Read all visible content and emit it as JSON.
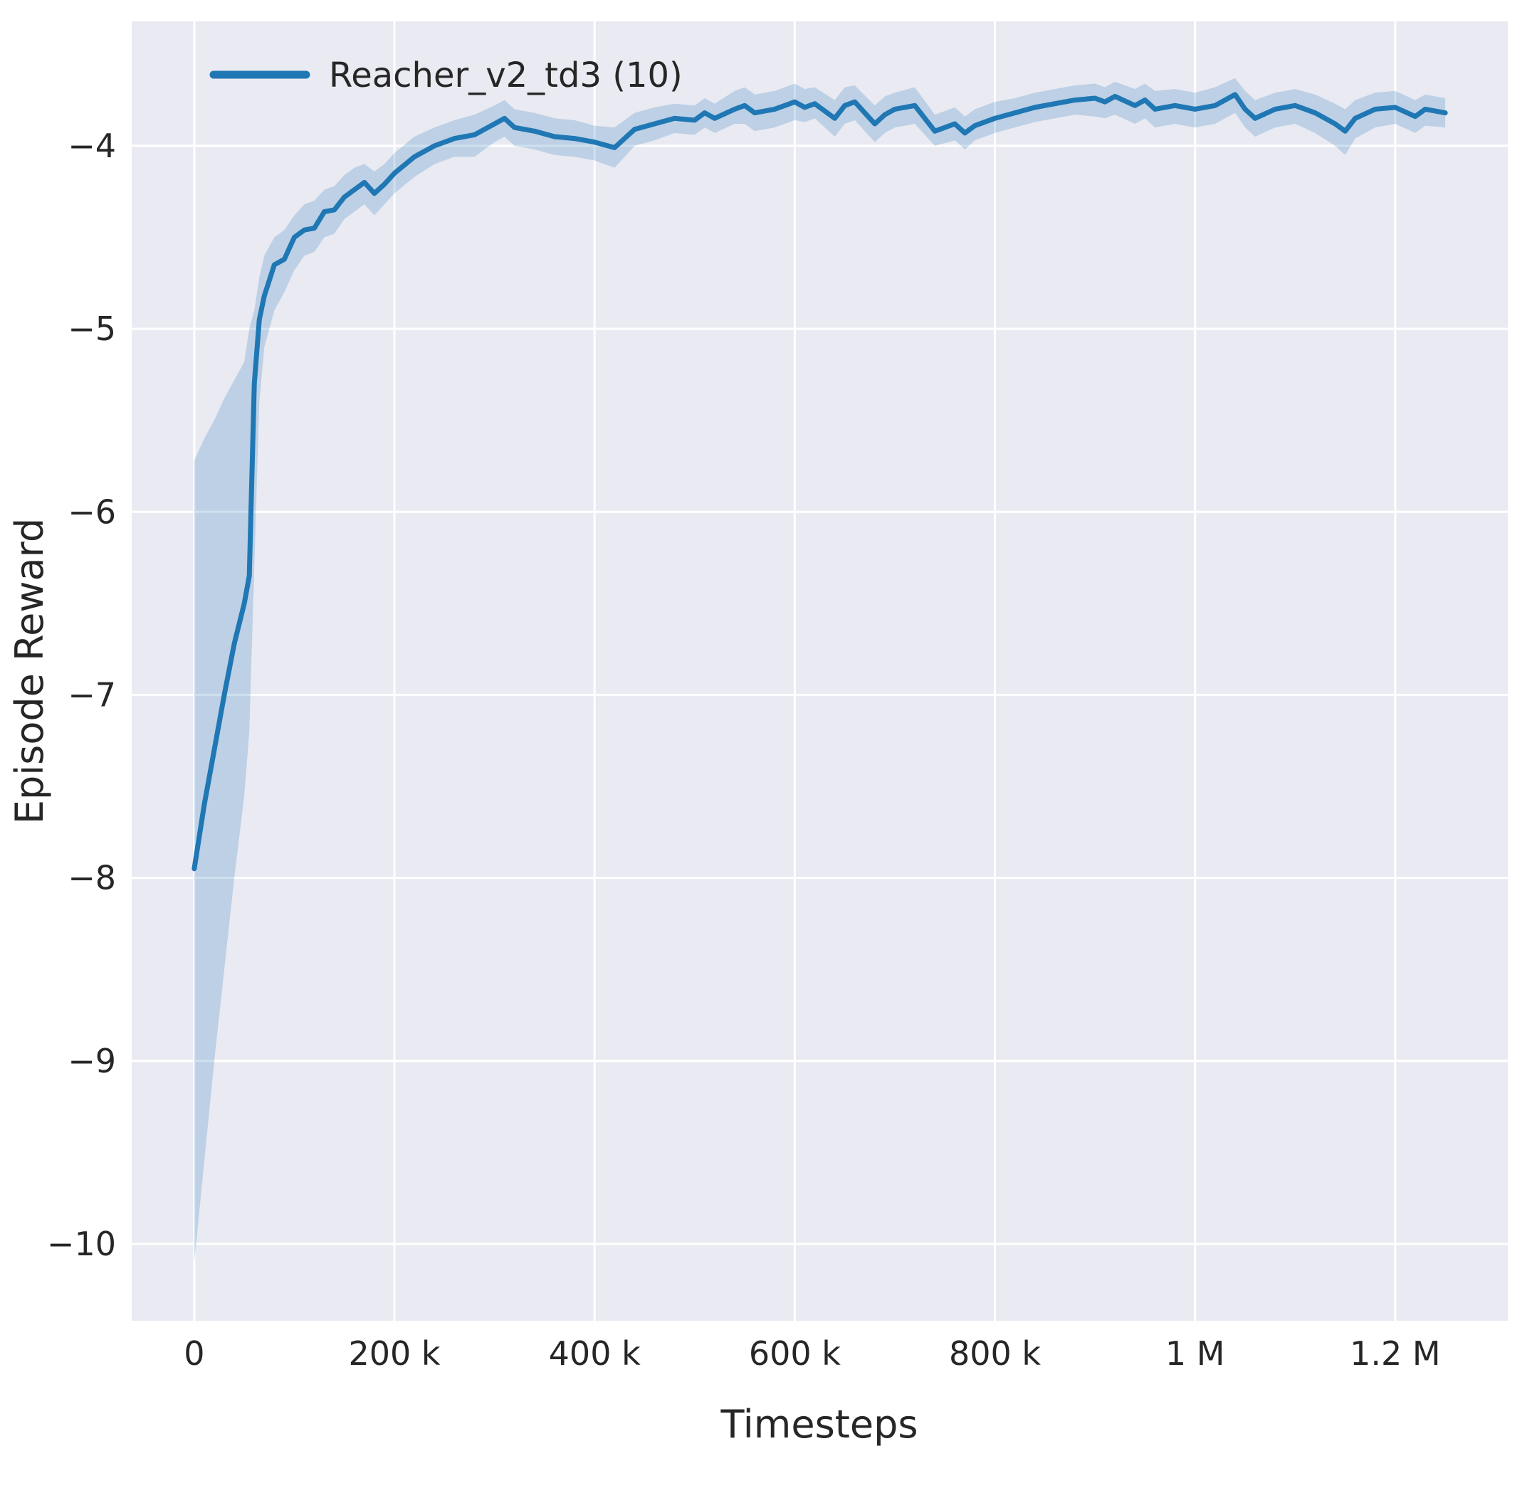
{
  "figure": {
    "background": "#ffffff",
    "plot_background": "#eaeaf2",
    "grid_color": "#ffffff"
  },
  "chart_data": {
    "type": "line",
    "title": "",
    "xlabel": "Timesteps",
    "ylabel": "Episode Reward",
    "xlim": [
      -62500,
      1312500
    ],
    "ylim": [
      -10.42,
      -3.32
    ],
    "grid": true,
    "legend_position": "upper left",
    "xticks": {
      "values": [
        0,
        200000,
        400000,
        600000,
        800000,
        1000000,
        1200000
      ],
      "labels": [
        "0",
        "200 k",
        "400 k",
        "600 k",
        "800 k",
        "1 M",
        "1.2 M"
      ]
    },
    "yticks": {
      "values": [
        -10,
        -9,
        -8,
        -7,
        -6,
        -5,
        -4
      ],
      "labels": [
        "−10",
        "−9",
        "−8",
        "−7",
        "−6",
        "−5",
        "−4"
      ]
    },
    "colors": {
      "line": "#1f77b4",
      "band": "#1f77b4",
      "band_opacity": 0.22,
      "text": "#262626"
    },
    "series": [
      {
        "name": "Reacher_v2_td3 (10)",
        "x_unit_multiplier": 1000,
        "points_format": [
          "x_thousands",
          "mean",
          "band_low",
          "band_high"
        ],
        "points": [
          [
            0,
            -7.95,
            -10.1,
            -5.72
          ],
          [
            10,
            -7.6,
            -9.55,
            -5.6
          ],
          [
            20,
            -7.3,
            -9.0,
            -5.5
          ],
          [
            30,
            -7.0,
            -8.5,
            -5.38
          ],
          [
            40,
            -6.72,
            -8.0,
            -5.28
          ],
          [
            50,
            -6.5,
            -7.55,
            -5.18
          ],
          [
            55,
            -6.35,
            -7.2,
            -5.0
          ],
          [
            60,
            -5.3,
            -6.3,
            -4.9
          ],
          [
            65,
            -4.95,
            -5.4,
            -4.72
          ],
          [
            70,
            -4.82,
            -5.1,
            -4.6
          ],
          [
            80,
            -4.65,
            -4.9,
            -4.5
          ],
          [
            90,
            -4.62,
            -4.8,
            -4.46
          ],
          [
            100,
            -4.5,
            -4.68,
            -4.38
          ],
          [
            110,
            -4.46,
            -4.6,
            -4.32
          ],
          [
            120,
            -4.45,
            -4.58,
            -4.3
          ],
          [
            130,
            -4.36,
            -4.5,
            -4.24
          ],
          [
            140,
            -4.35,
            -4.48,
            -4.22
          ],
          [
            150,
            -4.28,
            -4.4,
            -4.16
          ],
          [
            160,
            -4.24,
            -4.36,
            -4.12
          ],
          [
            170,
            -4.2,
            -4.32,
            -4.1
          ],
          [
            180,
            -4.26,
            -4.38,
            -4.14
          ],
          [
            190,
            -4.21,
            -4.32,
            -4.1
          ],
          [
            200,
            -4.15,
            -4.26,
            -4.04
          ],
          [
            220,
            -4.06,
            -4.17,
            -3.95
          ],
          [
            240,
            -4.0,
            -4.1,
            -3.9
          ],
          [
            260,
            -3.96,
            -4.06,
            -3.86
          ],
          [
            280,
            -3.94,
            -4.06,
            -3.83
          ],
          [
            300,
            -3.88,
            -3.98,
            -3.78
          ],
          [
            310,
            -3.85,
            -3.95,
            -3.75
          ],
          [
            320,
            -3.9,
            -4.0,
            -3.8
          ],
          [
            340,
            -3.92,
            -4.02,
            -3.82
          ],
          [
            360,
            -3.95,
            -4.05,
            -3.85
          ],
          [
            380,
            -3.96,
            -4.06,
            -3.86
          ],
          [
            400,
            -3.98,
            -4.08,
            -3.89
          ],
          [
            420,
            -4.01,
            -4.12,
            -3.9
          ],
          [
            430,
            -3.96,
            -4.06,
            -3.86
          ],
          [
            440,
            -3.91,
            -4.0,
            -3.82
          ],
          [
            460,
            -3.88,
            -3.97,
            -3.79
          ],
          [
            480,
            -3.85,
            -3.93,
            -3.77
          ],
          [
            500,
            -3.86,
            -3.94,
            -3.78
          ],
          [
            510,
            -3.82,
            -3.9,
            -3.74
          ],
          [
            520,
            -3.85,
            -3.93,
            -3.77
          ],
          [
            540,
            -3.8,
            -3.88,
            -3.7
          ],
          [
            550,
            -3.78,
            -3.88,
            -3.68
          ],
          [
            560,
            -3.82,
            -3.92,
            -3.72
          ],
          [
            580,
            -3.8,
            -3.9,
            -3.7
          ],
          [
            600,
            -3.76,
            -3.86,
            -3.66
          ],
          [
            610,
            -3.79,
            -3.87,
            -3.69
          ],
          [
            620,
            -3.77,
            -3.85,
            -3.68
          ],
          [
            640,
            -3.85,
            -3.95,
            -3.75
          ],
          [
            650,
            -3.78,
            -3.88,
            -3.68
          ],
          [
            660,
            -3.76,
            -3.86,
            -3.67
          ],
          [
            680,
            -3.88,
            -3.98,
            -3.78
          ],
          [
            690,
            -3.83,
            -3.93,
            -3.73
          ],
          [
            700,
            -3.8,
            -3.9,
            -3.71
          ],
          [
            720,
            -3.78,
            -3.88,
            -3.68
          ],
          [
            740,
            -3.92,
            -4.0,
            -3.83
          ],
          [
            760,
            -3.88,
            -3.97,
            -3.79
          ],
          [
            770,
            -3.93,
            -4.02,
            -3.84
          ],
          [
            780,
            -3.89,
            -3.97,
            -3.8
          ],
          [
            800,
            -3.85,
            -3.93,
            -3.76
          ],
          [
            820,
            -3.82,
            -3.9,
            -3.74
          ],
          [
            840,
            -3.79,
            -3.87,
            -3.71
          ],
          [
            860,
            -3.77,
            -3.85,
            -3.69
          ],
          [
            880,
            -3.75,
            -3.83,
            -3.67
          ],
          [
            900,
            -3.74,
            -3.84,
            -3.66
          ],
          [
            910,
            -3.76,
            -3.85,
            -3.68
          ],
          [
            920,
            -3.73,
            -3.83,
            -3.65
          ],
          [
            940,
            -3.78,
            -3.88,
            -3.69
          ],
          [
            950,
            -3.75,
            -3.85,
            -3.66
          ],
          [
            960,
            -3.8,
            -3.9,
            -3.7
          ],
          [
            980,
            -3.78,
            -3.88,
            -3.69
          ],
          [
            1000,
            -3.8,
            -3.9,
            -3.71
          ],
          [
            1020,
            -3.78,
            -3.88,
            -3.68
          ],
          [
            1040,
            -3.72,
            -3.82,
            -3.63
          ],
          [
            1050,
            -3.8,
            -3.9,
            -3.7
          ],
          [
            1060,
            -3.85,
            -3.95,
            -3.75
          ],
          [
            1080,
            -3.8,
            -3.9,
            -3.71
          ],
          [
            1100,
            -3.78,
            -3.88,
            -3.69
          ],
          [
            1120,
            -3.82,
            -3.93,
            -3.72
          ],
          [
            1140,
            -3.88,
            -4.0,
            -3.77
          ],
          [
            1150,
            -3.92,
            -4.05,
            -3.8
          ],
          [
            1160,
            -3.85,
            -3.96,
            -3.75
          ],
          [
            1180,
            -3.8,
            -3.9,
            -3.71
          ],
          [
            1200,
            -3.79,
            -3.88,
            -3.7
          ],
          [
            1220,
            -3.84,
            -3.93,
            -3.75
          ],
          [
            1230,
            -3.8,
            -3.89,
            -3.72
          ],
          [
            1250,
            -3.82,
            -3.9,
            -3.74
          ]
        ]
      }
    ]
  }
}
